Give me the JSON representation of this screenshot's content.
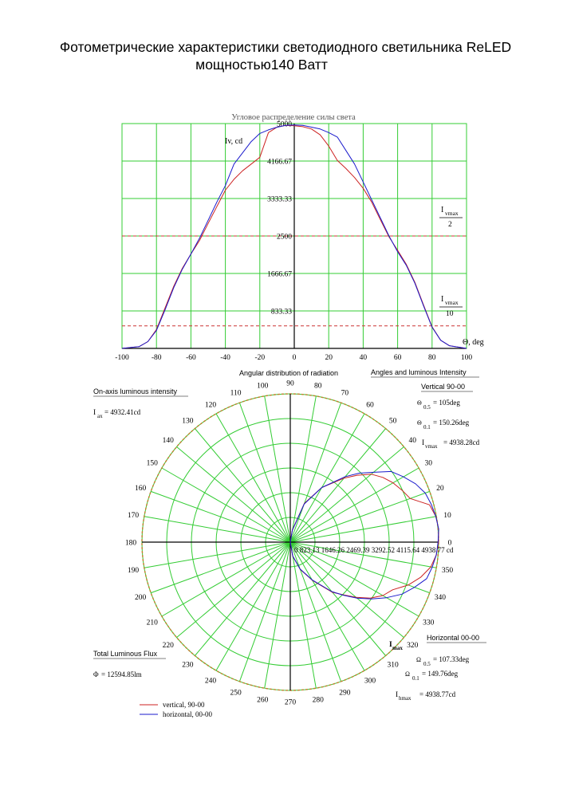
{
  "title": {
    "line1": "Фотометрические характеристики светодиодного светильника ReLED",
    "line2": "мощностью140 Ватт"
  },
  "colors": {
    "grid": "#33cc33",
    "vertical": "#cc2222",
    "horizontal": "#1a1acc",
    "threshold": "#cc3333",
    "polar_outline": "#c08030",
    "axis": "#000000"
  },
  "chart_data": [
    {
      "type": "line",
      "title": "Угловое распределение силы света",
      "xlabel": "Θ, deg",
      "ylabel": "Iv, cd",
      "xlim": [
        -100,
        100
      ],
      "ylim": [
        0,
        5000
      ],
      "grid": true,
      "x_ticks": [
        "-100",
        "-80",
        "-60",
        "-40",
        "-20",
        "0",
        "20",
        "40",
        "60",
        "80",
        "100"
      ],
      "y_ticks": [
        "5000",
        "4166.67",
        "3333.33",
        "2500",
        "1666.67",
        "833.33"
      ],
      "annotations": [
        {
          "text_top": "I",
          "sub": "vmax",
          "bottom": "2",
          "value": 2500
        },
        {
          "text_top": "I",
          "sub": "vmax",
          "bottom": "10",
          "value": 500
        }
      ],
      "series": [
        {
          "name": "vertical, 90-00",
          "x": [
            -100,
            -90,
            -85,
            -80,
            -75,
            -70,
            -65,
            -60,
            -55,
            -50,
            -45,
            -40,
            -35,
            -30,
            -25,
            -20,
            -15,
            -10,
            -5,
            0,
            5,
            10,
            15,
            20,
            25,
            30,
            35,
            40,
            45,
            50,
            55,
            60,
            65,
            70,
            75,
            80,
            85,
            90,
            100
          ],
          "y": [
            0,
            40,
            150,
            420,
            900,
            1380,
            1780,
            2100,
            2400,
            2780,
            3150,
            3520,
            3760,
            3950,
            4100,
            4250,
            4800,
            4920,
            4960,
            4950,
            4930,
            4880,
            4750,
            4500,
            4180,
            4000,
            3800,
            3560,
            3250,
            2860,
            2480,
            2180,
            1870,
            1470,
            970,
            480,
            180,
            60,
            0
          ]
        },
        {
          "name": "horizontal, 00-00",
          "x": [
            -100,
            -90,
            -85,
            -80,
            -75,
            -70,
            -65,
            -60,
            -55,
            -50,
            -45,
            -40,
            -35,
            -30,
            -25,
            -20,
            -15,
            -10,
            -5,
            0,
            5,
            10,
            15,
            20,
            25,
            30,
            35,
            40,
            45,
            50,
            55,
            60,
            65,
            70,
            75,
            80,
            85,
            90,
            100
          ],
          "y": [
            0,
            40,
            150,
            400,
            860,
            1350,
            1760,
            2100,
            2450,
            2850,
            3250,
            3620,
            4100,
            4350,
            4600,
            4780,
            4860,
            4920,
            4960,
            4970,
            4960,
            4920,
            4880,
            4800,
            4700,
            4400,
            4100,
            3700,
            3300,
            2900,
            2500,
            2150,
            1850,
            1450,
            950,
            470,
            180,
            60,
            0
          ]
        }
      ]
    },
    {
      "type": "polar",
      "title": "Angular distribution of radiation",
      "angle_unit": "deg",
      "radial_max": 4938.77,
      "radial_unit": "cd",
      "angle_labels": [
        "0",
        "10",
        "20",
        "30",
        "40",
        "50",
        "60",
        "70",
        "80",
        "90",
        "100",
        "110",
        "120",
        "130",
        "140",
        "150",
        "160",
        "170",
        "180",
        "190",
        "200",
        "210",
        "220",
        "230",
        "240",
        "250",
        "260",
        "270",
        "280",
        "290",
        "300",
        "310",
        "320",
        "330",
        "340",
        "350"
      ],
      "radial_labels_text": "0 823.13 1646.26 2469.39 3292.52 4115.64 4938.77 cd",
      "series": [
        {
          "name": "vertical, 90-00",
          "angle": [
            -90,
            -80,
            -70,
            -60,
            -50,
            -45,
            -40,
            -35,
            -30,
            -25,
            -20,
            -15,
            -10,
            -5,
            0,
            5,
            10,
            15,
            20,
            25,
            30,
            35,
            40,
            45,
            50,
            60,
            70,
            80,
            90
          ],
          "r": [
            0,
            480,
            970,
            1470,
            2180,
            2480,
            2860,
            3250,
            3560,
            3760,
            4180,
            4500,
            4750,
            4880,
            4930,
            4960,
            4920,
            4800,
            4250,
            4100,
            3950,
            3760,
            3520,
            3150,
            2780,
            2100,
            1380,
            420,
            0
          ]
        },
        {
          "name": "horizontal, 00-00",
          "angle": [
            -90,
            -80,
            -70,
            -60,
            -50,
            -45,
            -40,
            -35,
            -30,
            -25,
            -20,
            -15,
            -10,
            -5,
            0,
            5,
            10,
            15,
            20,
            25,
            30,
            35,
            40,
            45,
            50,
            60,
            70,
            80,
            90
          ],
          "r": [
            0,
            470,
            950,
            1450,
            2150,
            2500,
            2900,
            3300,
            3700,
            4100,
            4400,
            4700,
            4800,
            4880,
            4920,
            4960,
            4920,
            4860,
            4780,
            4600,
            4350,
            4100,
            3620,
            3250,
            2850,
            2100,
            1350,
            400,
            0
          ]
        }
      ]
    }
  ],
  "info": {
    "angles_heading": "Angles and luminous Intensity",
    "onaxis_heading": "On-axis luminous intensity",
    "iax_label": "I",
    "iax_sub": "ax",
    "iax_value": "= 4932.41cd",
    "vertical_heading": "Vertical 90-00",
    "v05_sym": "Θ",
    "v05_sub": "0.5",
    "v05_value": "= 105deg",
    "v01_sym": "Θ",
    "v01_sub": "0.1",
    "v01_value": "= 150.26deg",
    "ivmax_label": "I",
    "ivmax_sub": "vmax",
    "ivmax_value": "= 4938.28cd",
    "lmax_label": "I",
    "lmax_sub": "max",
    "horizontal_heading": "Horizontal 00-00",
    "h05_sym": "Ω",
    "h05_sub": "0.5",
    "h05_value": "= 107.33deg",
    "h01_sym": "Ω",
    "h01_sub": "0.1",
    "h01_value": "= 149.76deg",
    "ihmax_label": "I",
    "ihmax_sub": "hmax",
    "ihmax_value": "= 4938.77cd",
    "flux_heading": "Total Luminous Flux",
    "flux_sym": "Φ",
    "flux_value": "= 12594.85lm"
  },
  "legend": {
    "vertical": "vertical, 90-00",
    "horizontal": "horizontal, 00-00"
  }
}
